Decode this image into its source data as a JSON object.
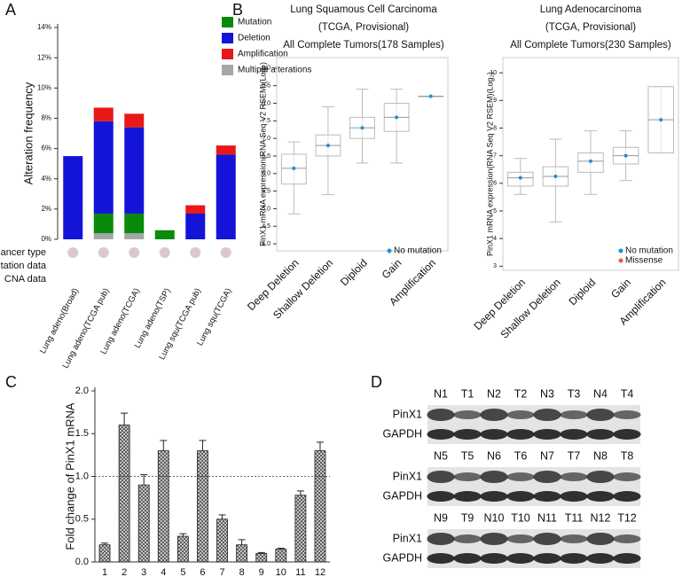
{
  "chart_data": [
    {
      "type": "stacked_bar",
      "panel_label": "A",
      "y_label": "Alteration frequency",
      "categories": [
        "Lung adeno(Broad)",
        "Lung adeno(TCGA pub)",
        "Lung adeno(TCGA)",
        "Lung adeno(TSP)",
        "Lung squ(TCGA pub)",
        "Lung squ(TCGA)"
      ],
      "series": [
        {
          "name": "Mutation",
          "color": "#0a8a0a",
          "values": [
            null,
            1.3,
            1.3,
            0.6,
            null,
            null
          ]
        },
        {
          "name": "Deletion",
          "color": "#1414d8",
          "values": [
            5.5,
            6.1,
            5.7,
            null,
            1.7,
            5.6
          ]
        },
        {
          "name": "Amplification",
          "color": "#e81818",
          "values": [
            null,
            0.9,
            0.9,
            null,
            0.55,
            0.6
          ]
        },
        {
          "name": "Multiple alterations",
          "color": "#a6a6a6",
          "values": [
            null,
            0.4,
            0.4,
            null,
            null,
            null
          ]
        }
      ],
      "ylim": [
        0,
        14
      ],
      "yticks": [
        {
          "value": 0,
          "label": "0%"
        },
        {
          "value": 2,
          "label": "2%"
        },
        {
          "value": 4,
          "label": "4%"
        },
        {
          "value": 6,
          "label": "6%"
        },
        {
          "value": 8,
          "label": "8%"
        },
        {
          "value": 10,
          "label": "10%"
        },
        {
          "value": 12,
          "label": "12%"
        },
        {
          "value": 14,
          "label": "14%"
        }
      ],
      "row_labels": [
        "Cancer type",
        "Mutation data",
        "CNA data"
      ]
    },
    {
      "type": "box",
      "panel_label": "B",
      "title_lines": [
        "Lung Squamous Cell Carcinoma",
        "(TCGA, Provisional)",
        "All Complete Tumors(178 Samples)"
      ],
      "y_label": "PinX1 mRNA expression(RNA Seq V2 RSEM)(Log₂)",
      "categories": [
        "Deep Deletion",
        "Shallow Deletion",
        "Diploid",
        "Gain",
        "Amplification"
      ],
      "boxes": [
        {
          "min": 4.85,
          "q1": 5.7,
          "median": 6.15,
          "q3": 6.55,
          "max": 6.9
        },
        {
          "min": 5.4,
          "q1": 6.5,
          "median": 6.8,
          "q3": 7.1,
          "max": 7.9
        },
        {
          "min": 6.3,
          "q1": 7.0,
          "median": 7.3,
          "q3": 7.6,
          "max": 8.4
        },
        {
          "min": 6.3,
          "q1": 7.2,
          "median": 7.6,
          "q3": 8.0,
          "max": 8.4
        },
        {
          "min": 8.2,
          "q1": 8.2,
          "median": 8.2,
          "q3": 8.2,
          "max": 8.2
        }
      ],
      "legend": [
        {
          "name": "No mutation",
          "color": "#1e90d0"
        }
      ],
      "ylim": [
        3.8,
        9.3
      ],
      "yticks": [
        {
          "value": 4,
          "label": "4.0"
        },
        {
          "value": 4.5,
          "label": "4.5"
        },
        {
          "value": 5,
          "label": "5.0"
        },
        {
          "value": 5.5,
          "label": "5.5"
        },
        {
          "value": 6,
          "label": "6.0"
        },
        {
          "value": 6.5,
          "label": "6.5"
        },
        {
          "value": 7,
          "label": "7.0"
        },
        {
          "value": 7.5,
          "label": "7.5"
        },
        {
          "value": 8,
          "label": "8.0"
        },
        {
          "value": 8.5,
          "label": "8.5"
        },
        {
          "value": 9,
          "label": "9.0"
        }
      ]
    },
    {
      "type": "box",
      "title_lines": [
        "Lung Adenocarcinoma",
        "(TCGA, Provisional)",
        "All Complete Tumors(230 Samples)"
      ],
      "y_label": "PinX1 mRNA expression(RNA Seq V2 RSEM)(Log₂)",
      "categories": [
        "Deep Deletion",
        "Shallow Deletion",
        "Diploid",
        "Gain",
        "Amplification"
      ],
      "boxes": [
        {
          "min": 5.6,
          "q1": 5.9,
          "median": 6.2,
          "q3": 6.4,
          "max": 6.9
        },
        {
          "min": 4.6,
          "q1": 5.9,
          "median": 6.25,
          "q3": 6.6,
          "max": 7.6
        },
        {
          "min": 5.6,
          "q1": 6.4,
          "median": 6.8,
          "q3": 7.1,
          "max": 7.9
        },
        {
          "min": 6.1,
          "q1": 6.7,
          "median": 7.0,
          "q3": 7.3,
          "max": 7.9
        },
        {
          "min": 7.1,
          "q1": 7.1,
          "median": 8.3,
          "q3": 9.5,
          "max": 9.5
        }
      ],
      "legend": [
        {
          "name": "No mutation",
          "color": "#1e90d0"
        },
        {
          "name": "Missense",
          "color": "#e0603a"
        }
      ],
      "ylim": [
        2.85,
        10.55
      ],
      "yticks": [
        3,
        4,
        5,
        6,
        7,
        8,
        9,
        10
      ]
    },
    {
      "type": "bar",
      "panel_label": "C",
      "y_label": "Fold change of PinX1 mRNA",
      "categories": [
        "1",
        "2",
        "3",
        "4",
        "5",
        "6",
        "7",
        "8",
        "9",
        "10",
        "11",
        "12"
      ],
      "values": [
        0.2,
        1.6,
        0.9,
        1.3,
        0.3,
        1.3,
        0.5,
        0.2,
        0.1,
        0.15,
        0.78,
        1.3
      ],
      "errors": [
        0.02,
        0.14,
        0.12,
        0.12,
        0.03,
        0.12,
        0.05,
        0.06,
        0.01,
        0.01,
        0.05,
        0.1
      ],
      "reference_line": 1,
      "ylim": [
        0,
        2
      ],
      "yticks": [
        {
          "value": 0,
          "label": "0.0"
        },
        {
          "value": 0.5,
          "label": "0.5"
        },
        {
          "value": 1,
          "label": "1.0"
        },
        {
          "value": 1.5,
          "label": "1.5"
        },
        {
          "value": 2,
          "label": "2.0"
        }
      ]
    }
  ],
  "blot": {
    "panel_label": "D",
    "groups": [
      {
        "lanes": [
          "N1",
          "T1",
          "N2",
          "T2",
          "N3",
          "T3",
          "N4",
          "T4"
        ],
        "rows": [
          "PinX1",
          "GAPDH"
        ]
      },
      {
        "lanes": [
          "N5",
          "T5",
          "N6",
          "T6",
          "N7",
          "T7",
          "N8",
          "T8"
        ],
        "rows": [
          "PinX1",
          "GAPDH"
        ]
      },
      {
        "lanes": [
          "N9",
          "T9",
          "N10",
          "T10",
          "N11",
          "T11",
          "N12",
          "T12"
        ],
        "rows": [
          "PinX1",
          "GAPDH"
        ]
      }
    ]
  }
}
